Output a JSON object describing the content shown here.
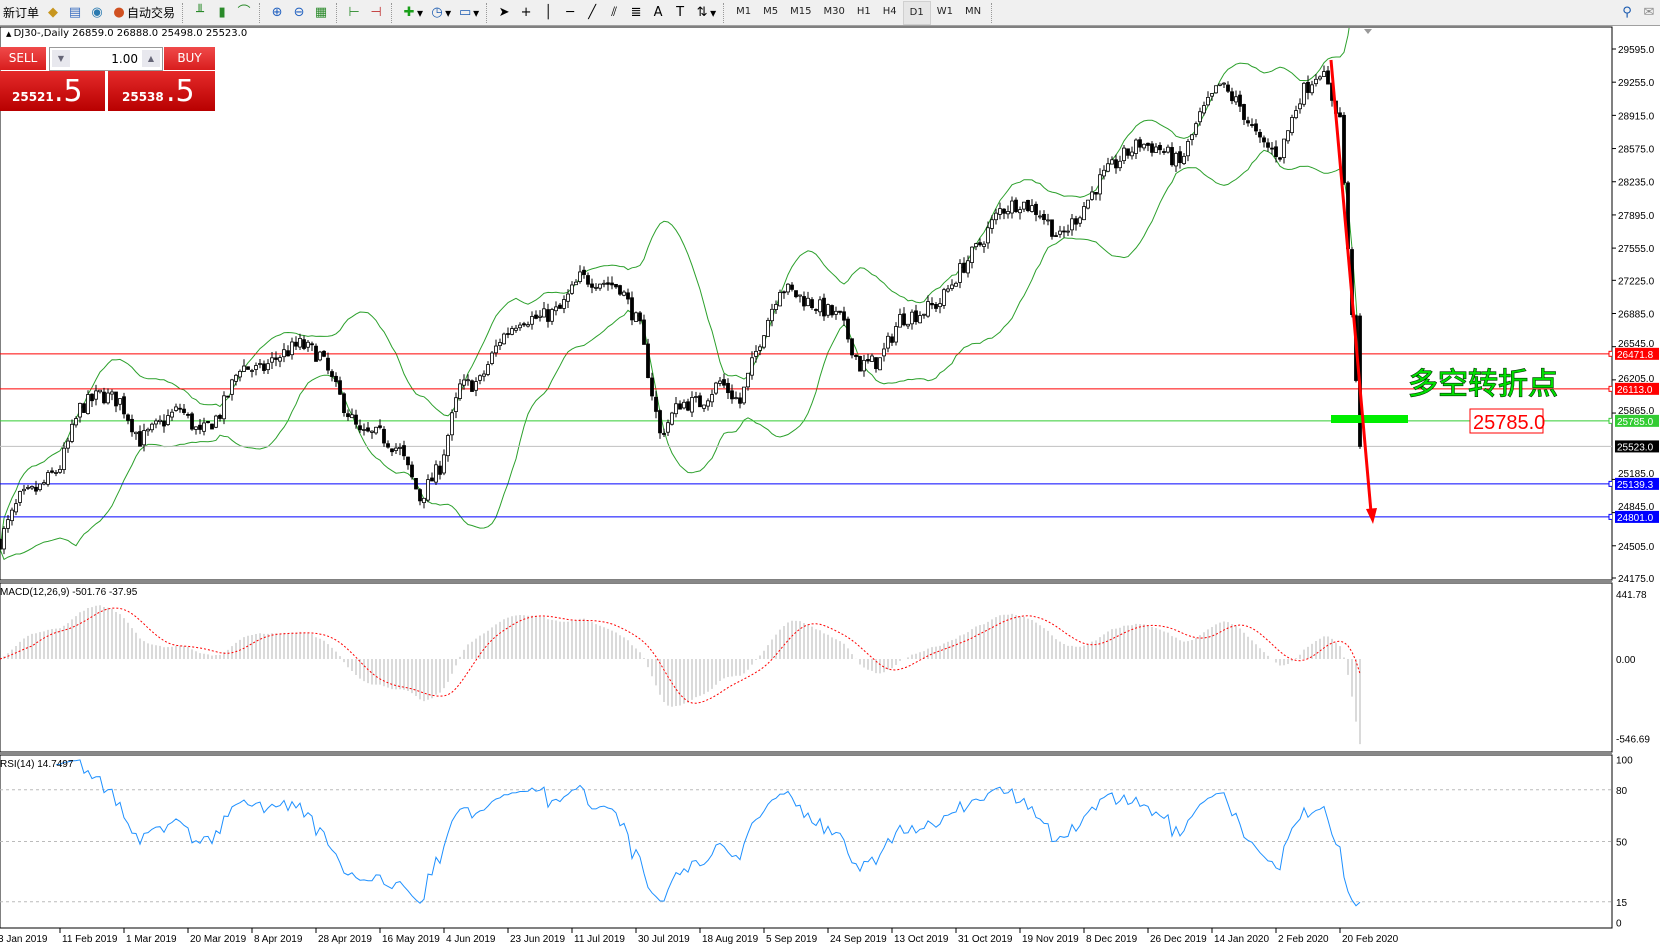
{
  "toolbar": {
    "new_order": "新订单",
    "auto_trading": "自动交易",
    "timeframes": [
      "M1",
      "M5",
      "M15",
      "M30",
      "H1",
      "H4",
      "D1",
      "W1",
      "MN"
    ],
    "active_timeframe": "D1"
  },
  "symbol_info": "DJ30-,Daily  26859.0 26888.0 25498.0 25523.0",
  "trade_panel": {
    "sell_label": "SELL",
    "buy_label": "BUY",
    "lot": "1.00",
    "sell_price_main": "25521",
    "sell_price_frac": ".5",
    "buy_price_main": "25538",
    "buy_price_frac": ".5"
  },
  "price_axis": {
    "ticks": [
      29595,
      29255,
      28915,
      28575,
      28235,
      27895,
      27555,
      27225,
      26885,
      26545,
      26205,
      25865,
      25185,
      24845,
      24505,
      24175
    ],
    "current_price": "25523.0"
  },
  "levels": [
    {
      "price": 26471.8,
      "label": "26471.8",
      "color": "#ff0000"
    },
    {
      "price": 26113.0,
      "label": "26113.0",
      "color": "#ff0000"
    },
    {
      "price": 25785.0,
      "label": "25785.0",
      "color": "#33cc33"
    },
    {
      "price": 25139.3,
      "label": "25139.3",
      "color": "#0000ff"
    },
    {
      "price": 24801.0,
      "label": "24801.0",
      "color": "#0000ff"
    }
  ],
  "annotations": {
    "turning_point_text": "多空转折点",
    "turning_point_price": "25785.0",
    "text_color": "#00dd00",
    "arrow_color": "#ff0000"
  },
  "macd": {
    "label": "MACD(12,26,9) -501.76 -37.95",
    "axis": [
      "441.78",
      "0.00",
      "-546.69"
    ]
  },
  "rsi": {
    "label": "RSI(14) 14.7497",
    "axis": [
      "100",
      "80",
      "50",
      "15",
      "0"
    ]
  },
  "dates": [
    "3 Jan 2019",
    "11 Feb 2019",
    "1 Mar 2019",
    "20 Mar 2019",
    "8 Apr 2019",
    "28 Apr 2019",
    "16 May 2019",
    "4 Jun 2019",
    "23 Jun 2019",
    "11 Jul 2019",
    "30 Jul 2019",
    "18 Aug 2019",
    "5 Sep 2019",
    "24 Sep 2019",
    "13 Oct 2019",
    "31 Oct 2019",
    "19 Nov 2019",
    "8 Dec 2019",
    "26 Dec 2019",
    "14 Jan 2020",
    "2 Feb 2020",
    "20 Feb 2020"
  ],
  "chart_data": {
    "type": "candlestick",
    "symbol": "DJ30-",
    "timeframe": "Daily",
    "indicators": [
      "Bollinger Bands(20,2)",
      "MACD(12,26,9)",
      "RSI(14)"
    ],
    "approx_weekly_closes": [
      24556,
      24990,
      25099,
      25316,
      25914,
      26055,
      25990,
      25588,
      25751,
      25914,
      25642,
      25860,
      26348,
      26294,
      26457,
      26566,
      26457,
      26023,
      25642,
      25642,
      25479,
      24990,
      25316,
      26131,
      26185,
      26619,
      26836,
      26836,
      26923,
      27249,
      27217,
      27163,
      26728,
      25642,
      25968,
      25968,
      26185,
      25968,
      26619,
      27163,
      27054,
      26945,
      26836,
      26348,
      26402,
      26836,
      26891,
      27000,
      27325,
      27597,
      27944,
      28031,
      27923,
      27651,
      27923,
      28249,
      28466,
      28629,
      28574,
      28411,
      28900,
      29226,
      29009,
      28629,
      28520,
      29117,
      29389,
      28900,
      25523
    ],
    "last_bar": {
      "open": 26859.0,
      "high": 26888.0,
      "low": 25498.0,
      "close": 25523.0
    },
    "price_range": [
      24175,
      29595
    ]
  }
}
